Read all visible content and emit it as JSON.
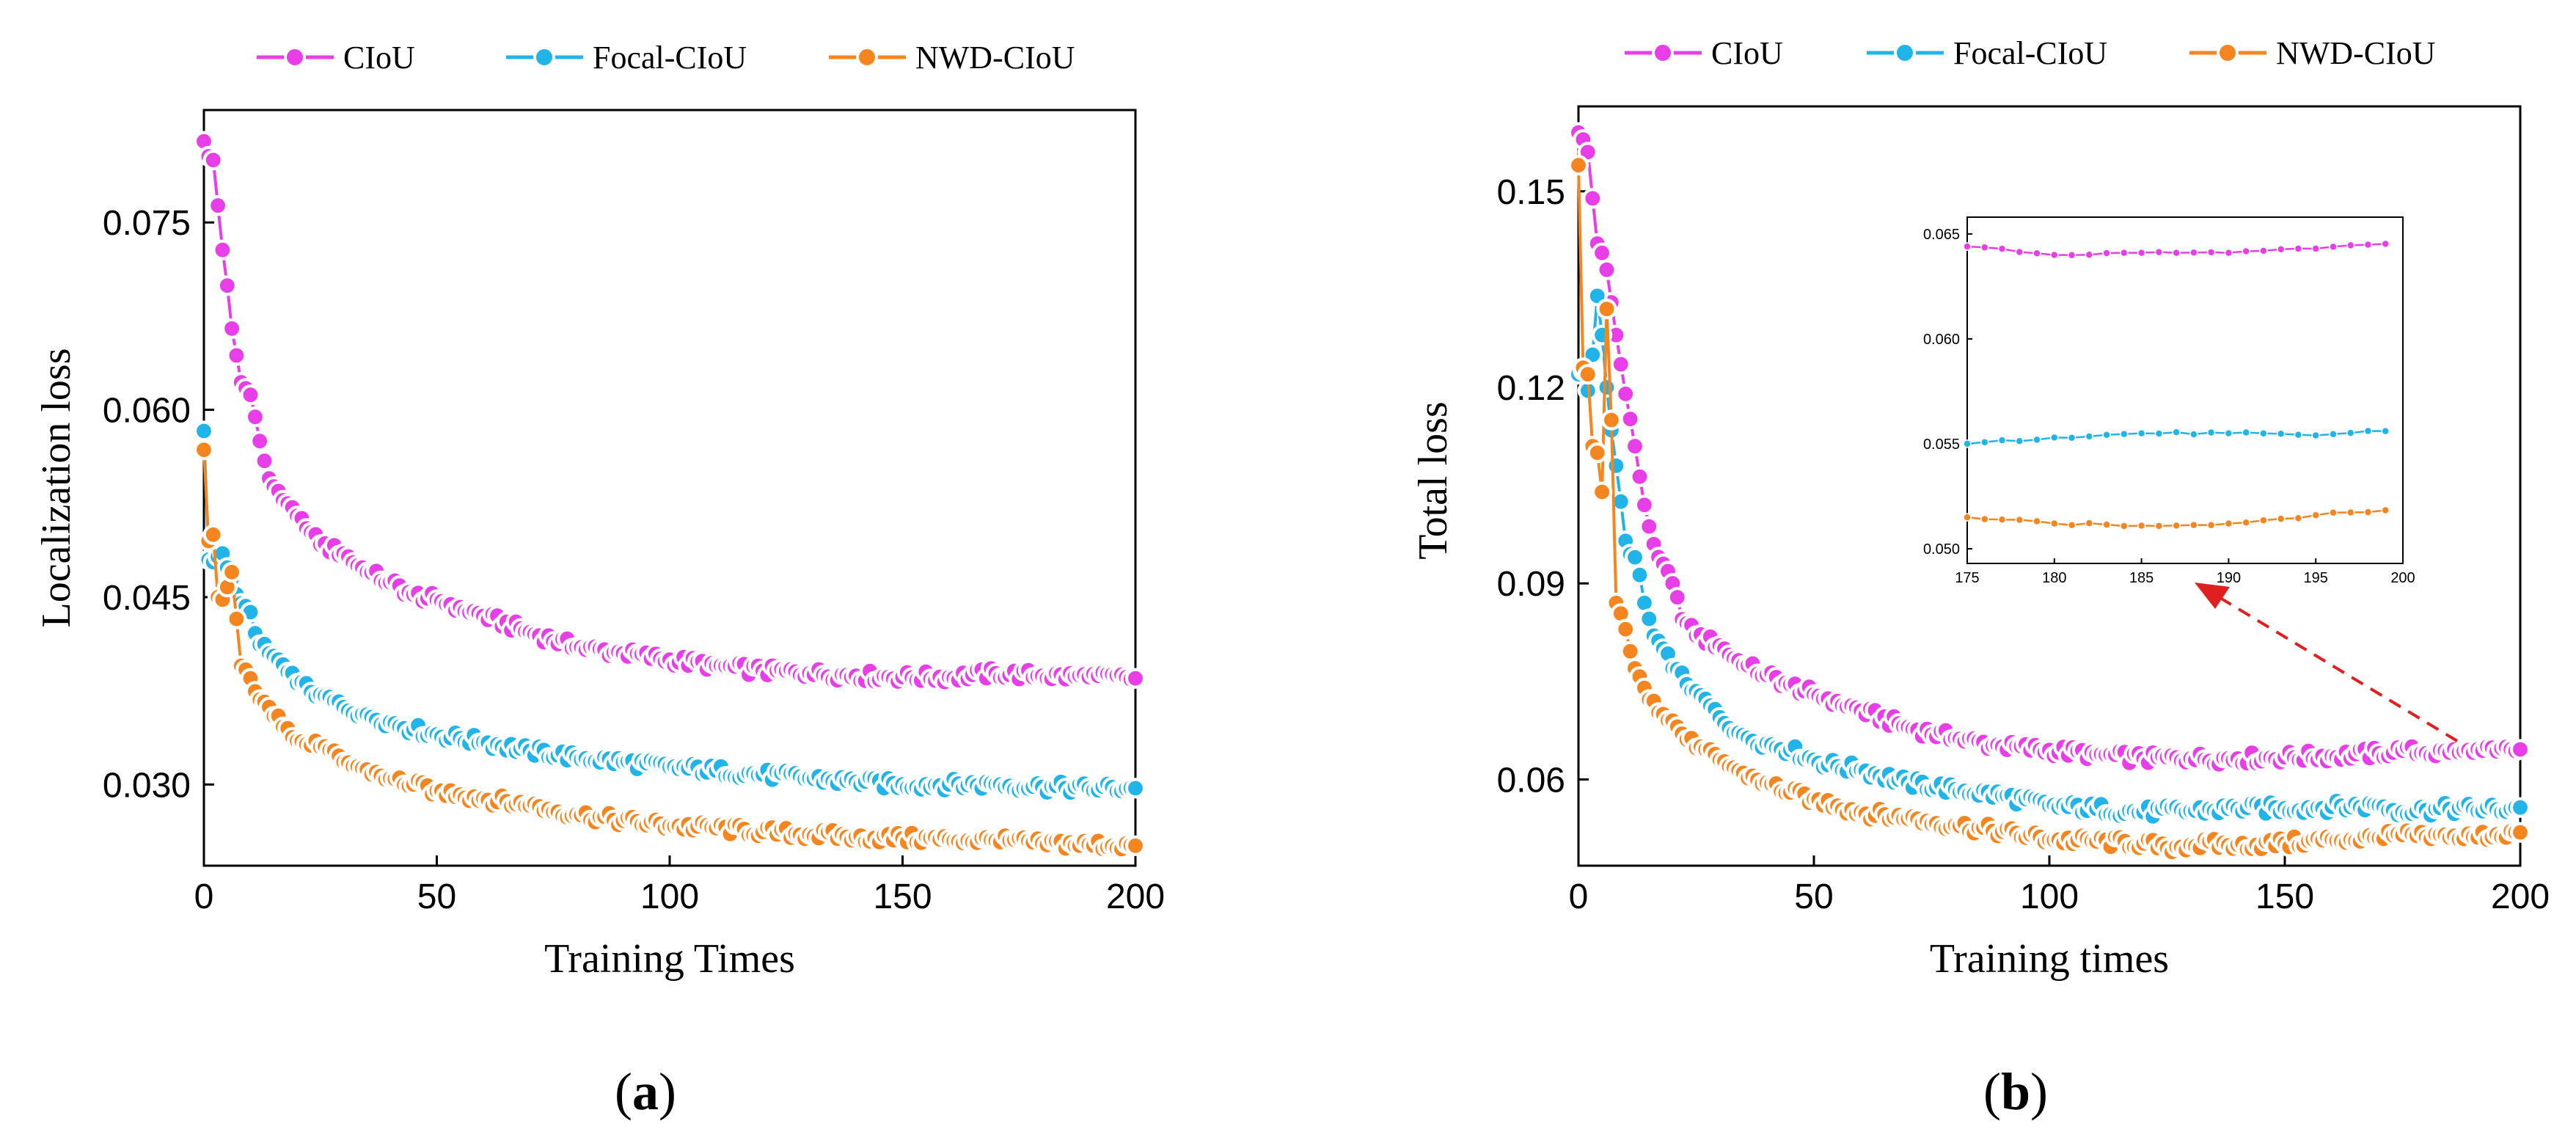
{
  "colors": {
    "ciou": "#e83ee8",
    "focal": "#20b4e8",
    "nwd": "#f5851f",
    "arrow": "#e02020"
  },
  "panel_labels": {
    "a": {
      "open": "(",
      "letter": "a",
      "close": ")"
    },
    "b": {
      "open": "(",
      "letter": "b",
      "close": ")"
    }
  },
  "chart_data": [
    {
      "id": "a",
      "type": "line",
      "title": "",
      "xlabel": "Training Times",
      "ylabel": "Localization loss",
      "xlim": [
        0,
        200
      ],
      "ylim": [
        0.0235,
        0.084
      ],
      "xticks": [
        0,
        50,
        100,
        150,
        200
      ],
      "yticks": [
        0.03,
        0.045,
        0.06,
        0.075
      ],
      "ytick_labels": [
        "0.030",
        "0.045",
        "0.060",
        "0.075"
      ],
      "legend": [
        "CIoU",
        "Focal-CIoU",
        "NWD-CIoU"
      ],
      "legend_position": "top",
      "series": [
        {
          "name": "CIoU",
          "color_key": "ciou",
          "anchors": [
            [
              0,
              0.0815
            ],
            [
              1,
              0.0803
            ],
            [
              2,
              0.08
            ],
            [
              4,
              0.0728
            ],
            [
              6,
              0.0665
            ],
            [
              8,
              0.0622
            ],
            [
              10,
              0.0612
            ],
            [
              12,
              0.0575
            ],
            [
              14,
              0.0545
            ],
            [
              16,
              0.0535
            ],
            [
              18,
              0.0525
            ],
            [
              20,
              0.0515
            ],
            [
              22,
              0.0505
            ],
            [
              25,
              0.0492
            ],
            [
              30,
              0.0485
            ],
            [
              35,
              0.047
            ],
            [
              40,
              0.0462
            ],
            [
              45,
              0.0452
            ],
            [
              50,
              0.0448
            ],
            [
              55,
              0.0442
            ],
            [
              60,
              0.0435
            ],
            [
              70,
              0.0422
            ],
            [
              80,
              0.041
            ],
            [
              90,
              0.0405
            ],
            [
              100,
              0.04
            ],
            [
              110,
              0.0395
            ],
            [
              120,
              0.0391
            ],
            [
              130,
              0.0389
            ],
            [
              140,
              0.0387
            ],
            [
              150,
              0.0386
            ],
            [
              160,
              0.0386
            ],
            [
              170,
              0.0389
            ],
            [
              180,
              0.0387
            ],
            [
              190,
              0.0386
            ],
            [
              200,
              0.0385
            ]
          ]
        },
        {
          "name": "Focal-CIoU",
          "color_key": "focal",
          "anchors": [
            [
              0,
              0.0583
            ],
            [
              1,
              0.048
            ],
            [
              2,
              0.0478
            ],
            [
              4,
              0.0485
            ],
            [
              6,
              0.0465
            ],
            [
              8,
              0.0445
            ],
            [
              10,
              0.0438
            ],
            [
              12,
              0.0412
            ],
            [
              14,
              0.0405
            ],
            [
              16,
              0.04
            ],
            [
              18,
              0.039
            ],
            [
              20,
              0.0381
            ],
            [
              25,
              0.0372
            ],
            [
              30,
              0.0362
            ],
            [
              35,
              0.0356
            ],
            [
              40,
              0.035
            ],
            [
              45,
              0.0344
            ],
            [
              50,
              0.034
            ],
            [
              55,
              0.0337
            ],
            [
              60,
              0.0334
            ],
            [
              70,
              0.0327
            ],
            [
              80,
              0.0322
            ],
            [
              90,
              0.0318
            ],
            [
              100,
              0.0314
            ],
            [
              110,
              0.0311
            ],
            [
              120,
              0.0308
            ],
            [
              130,
              0.0305
            ],
            [
              140,
              0.0302
            ],
            [
              150,
              0.03
            ],
            [
              160,
              0.03
            ],
            [
              170,
              0.03
            ],
            [
              180,
              0.0298
            ],
            [
              190,
              0.0297
            ],
            [
              200,
              0.0297
            ]
          ]
        },
        {
          "name": "NWD-CIoU",
          "color_key": "nwd",
          "anchors": [
            [
              0,
              0.0568
            ],
            [
              1,
              0.0495
            ],
            [
              2,
              0.05
            ],
            [
              3,
              0.045
            ],
            [
              4,
              0.0448
            ],
            [
              6,
              0.047
            ],
            [
              8,
              0.0395
            ],
            [
              10,
              0.0385
            ],
            [
              12,
              0.0368
            ],
            [
              14,
              0.0362
            ],
            [
              16,
              0.0355
            ],
            [
              18,
              0.0345
            ],
            [
              20,
              0.0335
            ],
            [
              25,
              0.033
            ],
            [
              30,
              0.0318
            ],
            [
              35,
              0.0312
            ],
            [
              40,
              0.0305
            ],
            [
              45,
              0.03
            ],
            [
              50,
              0.0295
            ],
            [
              55,
              0.0292
            ],
            [
              60,
              0.0289
            ],
            [
              70,
              0.0283
            ],
            [
              80,
              0.0276
            ],
            [
              90,
              0.0271
            ],
            [
              100,
              0.0267
            ],
            [
              110,
              0.0265
            ],
            [
              120,
              0.0262
            ],
            [
              130,
              0.026
            ],
            [
              140,
              0.0258
            ],
            [
              150,
              0.0257
            ],
            [
              160,
              0.0256
            ],
            [
              170,
              0.0255
            ],
            [
              180,
              0.0253
            ],
            [
              190,
              0.0252
            ],
            [
              200,
              0.0251
            ]
          ]
        }
      ]
    },
    {
      "id": "b",
      "type": "line",
      "title": "",
      "xlabel": "Training times",
      "ylabel": "Total loss",
      "xlim": [
        0,
        200
      ],
      "ylim": [
        0.0468,
        0.163
      ],
      "xticks": [
        0,
        50,
        100,
        150,
        200
      ],
      "yticks": [
        0.06,
        0.09,
        0.12,
        0.15
      ],
      "ytick_labels": [
        "0.06",
        "0.09",
        "0.12",
        "0.15"
      ],
      "legend": [
        "CIoU",
        "Focal-CIoU",
        "NWD-CIoU"
      ],
      "legend_position": "top",
      "series": [
        {
          "name": "CIoU",
          "color_key": "ciou",
          "anchors": [
            [
              0,
              0.159
            ],
            [
              2,
              0.156
            ],
            [
              4,
              0.142
            ],
            [
              6,
              0.138
            ],
            [
              8,
              0.128
            ],
            [
              10,
              0.119
            ],
            [
              12,
              0.111
            ],
            [
              14,
              0.102
            ],
            [
              16,
              0.096
            ],
            [
              18,
              0.093
            ],
            [
              20,
              0.09
            ],
            [
              22,
              0.0845
            ],
            [
              25,
              0.082
            ],
            [
              30,
              0.0805
            ],
            [
              35,
              0.0775
            ],
            [
              40,
              0.076
            ],
            [
              45,
              0.0745
            ],
            [
              50,
              0.073
            ],
            [
              55,
              0.072
            ],
            [
              60,
              0.0705
            ],
            [
              70,
              0.068
            ],
            [
              80,
              0.0663
            ],
            [
              90,
              0.065
            ],
            [
              100,
              0.0645
            ],
            [
              110,
              0.0638
            ],
            [
              120,
              0.0632
            ],
            [
              130,
              0.0632
            ],
            [
              140,
              0.0632
            ],
            [
              150,
              0.0634
            ],
            [
              160,
              0.0636
            ],
            [
              170,
              0.064
            ],
            [
              175,
              0.0644
            ],
            [
              180,
              0.064
            ],
            [
              185,
              0.0641
            ],
            [
              190,
              0.0641
            ],
            [
              195,
              0.0643
            ],
            [
              200,
              0.0646
            ]
          ]
        },
        {
          "name": "Focal-CIoU",
          "color_key": "focal",
          "anchors": [
            [
              0,
              0.122
            ],
            [
              1,
              0.1225
            ],
            [
              2,
              0.1195
            ],
            [
              3,
              0.125
            ],
            [
              4,
              0.134
            ],
            [
              5,
              0.128
            ],
            [
              6,
              0.12
            ],
            [
              8,
              0.108
            ],
            [
              10,
              0.0965
            ],
            [
              12,
              0.094
            ],
            [
              14,
              0.087
            ],
            [
              16,
              0.082
            ],
            [
              18,
              0.08
            ],
            [
              20,
              0.077
            ],
            [
              25,
              0.0735
            ],
            [
              30,
              0.0695
            ],
            [
              35,
              0.0668
            ],
            [
              40,
              0.0655
            ],
            [
              45,
              0.0645
            ],
            [
              50,
              0.063
            ],
            [
              55,
              0.062
            ],
            [
              60,
              0.0615
            ],
            [
              70,
              0.0595
            ],
            [
              80,
              0.0585
            ],
            [
              90,
              0.0575
            ],
            [
              100,
              0.056
            ],
            [
              110,
              0.0555
            ],
            [
              120,
              0.055
            ],
            [
              130,
              0.0552
            ],
            [
              140,
              0.0555
            ],
            [
              150,
              0.0556
            ],
            [
              160,
              0.0558
            ],
            [
              170,
              0.056
            ],
            [
              175,
              0.055
            ],
            [
              180,
              0.0553
            ],
            [
              185,
              0.0555
            ],
            [
              190,
              0.0555
            ],
            [
              195,
              0.0554
            ],
            [
              200,
              0.0557
            ]
          ]
        },
        {
          "name": "NWD-CIoU",
          "color_key": "nwd",
          "anchors": [
            [
              0,
              0.154
            ],
            [
              1,
              0.123
            ],
            [
              2,
              0.122
            ],
            [
              3,
              0.111
            ],
            [
              4,
              0.11
            ],
            [
              5,
              0.104
            ],
            [
              6,
              0.132
            ],
            [
              7,
              0.115
            ],
            [
              8,
              0.087
            ],
            [
              10,
              0.083
            ],
            [
              12,
              0.077
            ],
            [
              14,
              0.074
            ],
            [
              16,
              0.072
            ],
            [
              18,
              0.07
            ],
            [
              20,
              0.069
            ],
            [
              22,
              0.067
            ],
            [
              25,
              0.0648
            ],
            [
              30,
              0.063
            ],
            [
              35,
              0.061
            ],
            [
              40,
              0.0595
            ],
            [
              45,
              0.058
            ],
            [
              50,
              0.057
            ],
            [
              55,
              0.056
            ],
            [
              60,
              0.055
            ],
            [
              70,
              0.054
            ],
            [
              80,
              0.053
            ],
            [
              90,
              0.052
            ],
            [
              100,
              0.0508
            ],
            [
              110,
              0.0505
            ],
            [
              120,
              0.0502
            ],
            [
              125,
              0.0495
            ],
            [
              130,
              0.05
            ],
            [
              140,
              0.05
            ],
            [
              150,
              0.0502
            ],
            [
              155,
              0.0506
            ],
            [
              160,
              0.0508
            ],
            [
              170,
              0.051
            ],
            [
              175,
              0.0515
            ],
            [
              180,
              0.0512
            ],
            [
              185,
              0.0511
            ],
            [
              190,
              0.0512
            ],
            [
              195,
              0.0516
            ],
            [
              200,
              0.0519
            ]
          ]
        }
      ],
      "inset": {
        "xlim": [
          175,
          200
        ],
        "ylim": [
          0.0493,
          0.0658
        ],
        "xticks": [
          175,
          180,
          185,
          190,
          195,
          200
        ],
        "yticks": [
          0.05,
          0.055,
          0.06,
          0.065
        ],
        "ytick_labels": [
          "0.050",
          "0.055",
          "0.060",
          "0.065"
        ]
      }
    }
  ]
}
